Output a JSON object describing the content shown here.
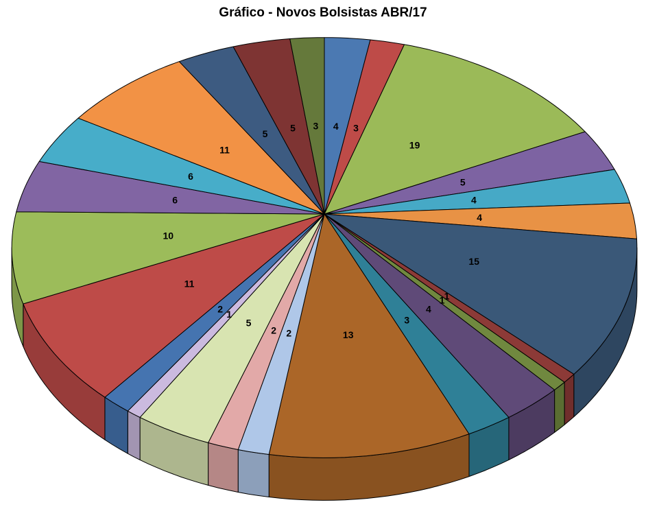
{
  "page": {
    "background": "#FFFFFF"
  },
  "chart_data": {
    "type": "pie",
    "style": "3d-pie",
    "title": "Gráfico - Novos Bolsistas ABR/17",
    "title_color": "#000000",
    "legend": "none",
    "start_angle_deg": 0,
    "direction": "clockwise",
    "total": 145,
    "values": [
      4,
      3,
      19,
      5,
      4,
      4,
      15,
      1,
      1,
      4,
      3,
      13,
      2,
      2,
      5,
      1,
      2,
      11,
      10,
      6,
      6,
      11,
      5,
      5,
      3
    ],
    "slice_colors": [
      "#4B79B2",
      "#BE4B48",
      "#9BBA58",
      "#7D63A2",
      "#46A9C6",
      "#E89245",
      "#3A5878",
      "#8C3A37",
      "#70883F",
      "#5F4A78",
      "#2F8097",
      "#AB6628",
      "#AFC7E8",
      "#E2A9A8",
      "#D8E4B1",
      "#CBBADF",
      "#4574B0",
      "#BE4B48",
      "#9CBC5A",
      "#8165A3",
      "#47ADC9",
      "#F29245",
      "#3D5B81",
      "#7E3433",
      "#65793B"
    ],
    "data_labels": {
      "show": true,
      "content": "value",
      "position": "inside",
      "color": "#000000",
      "bold": true
    }
  }
}
